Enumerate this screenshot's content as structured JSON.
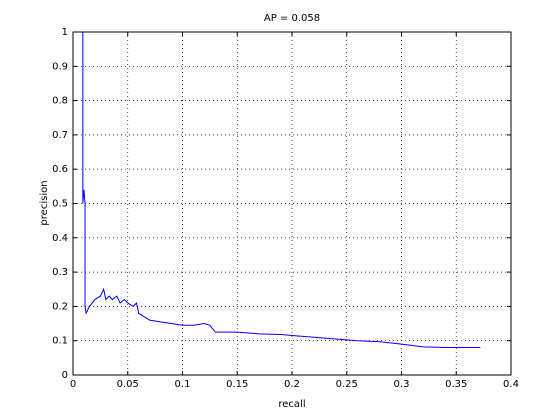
{
  "chart_data": {
    "type": "line",
    "title": "AP = 0.058",
    "x_label": "recall",
    "y_label": "precision",
    "x": [
      0.009,
      0.009,
      0.01,
      0.011,
      0.011,
      0.012,
      0.015,
      0.02,
      0.025,
      0.028,
      0.03,
      0.033,
      0.036,
      0.04,
      0.043,
      0.047,
      0.05,
      0.055,
      0.058,
      0.06,
      0.065,
      0.07,
      0.08,
      0.09,
      0.1,
      0.11,
      0.12,
      0.125,
      0.13,
      0.15,
      0.17,
      0.19,
      0.2,
      0.22,
      0.24,
      0.26,
      0.28,
      0.3,
      0.32,
      0.34,
      0.372
    ],
    "values": [
      1,
      0.5,
      0.54,
      0.5,
      0.2,
      0.18,
      0.2,
      0.22,
      0.23,
      0.25,
      0.22,
      0.23,
      0.22,
      0.23,
      0.21,
      0.22,
      0.21,
      0.2,
      0.21,
      0.18,
      0.17,
      0.16,
      0.155,
      0.15,
      0.145,
      0.145,
      0.15,
      0.145,
      0.125,
      0.125,
      0.12,
      0.118,
      0.115,
      0.11,
      0.105,
      0.1,
      0.097,
      0.09,
      0.082,
      0.08,
      0.08
    ],
    "color": "#0000ff",
    "xlim": [
      0,
      0.4
    ],
    "xticks": [
      0,
      0.05,
      0.1,
      0.15,
      0.2,
      0.25,
      0.3,
      0.35,
      0.4
    ],
    "ylim": [
      0,
      1
    ],
    "yticks": [
      0,
      0.1,
      0.2,
      0.3,
      0.4,
      0.5,
      0.6,
      0.7,
      0.8,
      0.9,
      1
    ],
    "grid": true
  }
}
